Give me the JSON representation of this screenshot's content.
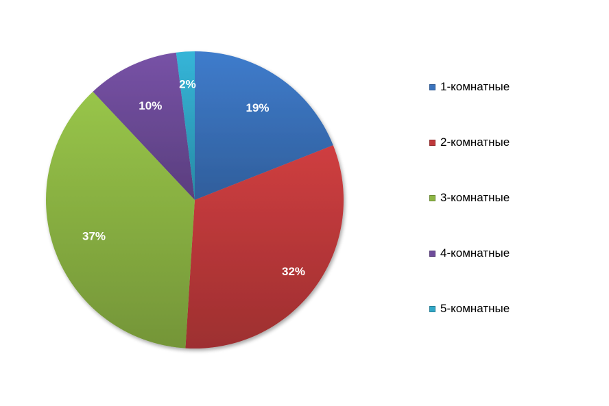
{
  "chart_data": {
    "type": "pie",
    "title": "",
    "categories": [
      "1-комнатные",
      "2-комнатные",
      "3-комнатные",
      "4-комнатные",
      "5-комнатные"
    ],
    "values": [
      19,
      32,
      37,
      10,
      2
    ],
    "value_labels": [
      "19%",
      "32%",
      "37%",
      "10%",
      "2%"
    ],
    "colors": [
      "#3a73bd",
      "#c0393b",
      "#8db644",
      "#6e4c9a",
      "#31a8c8"
    ],
    "start": "12 o'clock, clockwise",
    "legend_position": "right"
  }
}
